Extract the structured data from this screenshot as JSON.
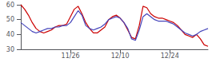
{
  "chart_data": {
    "type": "line",
    "categories": [
      null,
      null,
      null,
      null,
      null,
      null,
      null,
      null,
      null,
      null,
      null,
      null,
      null,
      "11/26",
      null,
      null,
      null,
      null,
      null,
      null,
      null,
      null,
      null,
      null,
      null,
      null,
      "12/10",
      null,
      null,
      null,
      null,
      null,
      null,
      null,
      null,
      null,
      null,
      null,
      null,
      "12/24",
      null,
      null,
      null,
      null,
      null,
      null,
      null,
      null,
      null,
      null
    ],
    "series": [
      {
        "color": "#cc0000",
        "values": [
          60,
          57,
          53,
          48,
          44,
          42,
          41,
          42,
          43,
          45,
          46,
          46,
          47,
          52,
          57,
          59,
          54,
          48,
          44,
          41,
          41,
          43,
          45,
          50,
          52,
          53,
          51,
          48,
          43,
          38,
          37,
          46,
          59,
          58,
          54,
          52,
          51,
          51,
          50,
          49,
          48,
          46,
          43,
          40,
          39,
          38,
          40,
          37,
          33,
          32
        ]
      },
      {
        "color": "#4444bb",
        "values": [
          48,
          46,
          44,
          42,
          41,
          42,
          43,
          44,
          44,
          45,
          45,
          46,
          46,
          48,
          52,
          56,
          53,
          46,
          44,
          43,
          44,
          45,
          47,
          50,
          51,
          52,
          51,
          48,
          44,
          37,
          36,
          43,
          52,
          54,
          52,
          50,
          49,
          49,
          49,
          48,
          47,
          45,
          43,
          41,
          40,
          39,
          40,
          42,
          43,
          44
        ]
      }
    ],
    "ylim": [
      30,
      60
    ],
    "yticks": [
      30,
      40,
      50,
      60
    ],
    "grid": false
  }
}
